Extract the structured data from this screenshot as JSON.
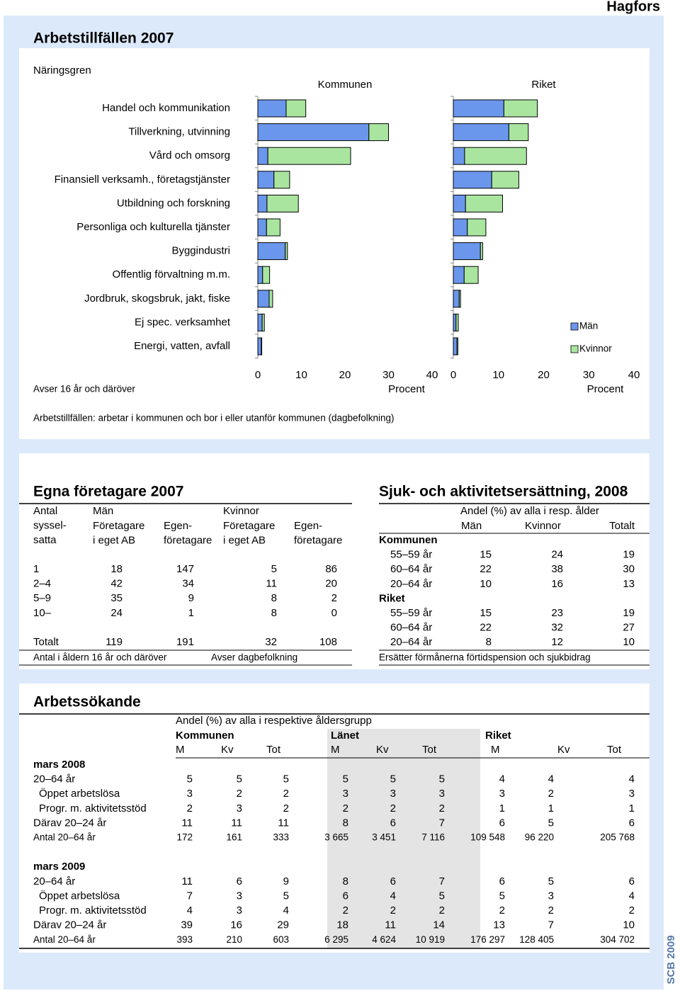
{
  "header": {
    "title": "Hagfors"
  },
  "side_label": "SCB 2009",
  "arbetstillfallen": {
    "title": "Arbetstillfällen 2007",
    "chart_data": [
      {
        "type": "bar",
        "orientation": "horizontal",
        "stacked": true,
        "title": "Kommunen",
        "category_label": "Näringsgren",
        "categories": [
          "Handel och kommunikation",
          "Tillverkning, utvinning",
          "Vård och omsorg",
          "Finansiell verksamh., företagstjänster",
          "Utbildning och forskning",
          "Personliga och kulturella tjänster",
          "Byggindustri",
          "Offentlig förvaltning m.m.",
          "Jordbruk, skogsbruk, jakt, fiske",
          "Ej spec. verksamhet",
          "Energi, vatten, avfall"
        ],
        "series": [
          {
            "name": "Män",
            "color": "#6a97ec",
            "values": [
              6.5,
              25.5,
              2.3,
              3.7,
              2.1,
              2.0,
              6.3,
              1.1,
              2.6,
              1.0,
              0.8
            ]
          },
          {
            "name": "Kvinnor",
            "color": "#a9e59f",
            "values": [
              4.5,
              4.5,
              19.0,
              3.6,
              7.2,
              3.1,
              0.5,
              1.6,
              0.8,
              0.5,
              0.1
            ]
          }
        ],
        "xlim": [
          0,
          40
        ],
        "xticks": [
          0,
          10,
          20,
          30,
          40
        ],
        "x_label": "Procent"
      },
      {
        "type": "bar",
        "orientation": "horizontal",
        "stacked": true,
        "title": "Riket",
        "series": [
          {
            "name": "Män",
            "color": "#6a97ec",
            "values": [
              11.2,
              12.3,
              2.5,
              8.5,
              2.7,
              3.1,
              6.0,
              2.4,
              1.3,
              0.6,
              0.8
            ]
          },
          {
            "name": "Kvinnor",
            "color": "#a9e59f",
            "values": [
              7.4,
              4.3,
              13.7,
              6.0,
              8.2,
              4.1,
              0.5,
              3.1,
              0.3,
              0.5,
              0.2
            ]
          }
        ],
        "xlim": [
          0,
          40
        ],
        "xticks": [
          0,
          10,
          20,
          30,
          40
        ],
        "x_label": "Procent"
      }
    ],
    "note": "Avser 16 år och däröver",
    "footnote": "Arbetstillfällen: arbetar i kommunen och bor i eller utanför kommunen (dagbefolkning)"
  },
  "egna": {
    "title": "Egna företagare 2007",
    "stub_header": [
      "Antal",
      "syssel-",
      "satta"
    ],
    "groups": [
      "Män",
      "Kvinnor"
    ],
    "subheaders": [
      [
        "Företagare",
        "i eget AB"
      ],
      [
        "Egen-",
        "företagare"
      ],
      [
        "Företagare",
        "i eget AB"
      ],
      [
        "Egen-",
        "företagare"
      ]
    ],
    "rows": [
      [
        "1",
        18,
        147,
        5,
        86
      ],
      [
        "2–4",
        42,
        34,
        11,
        20
      ],
      [
        "5–9",
        35,
        9,
        8,
        2
      ],
      [
        "10–",
        24,
        1,
        8,
        0
      ]
    ],
    "total": [
      "Totalt",
      119,
      191,
      32,
      108
    ],
    "notes": [
      "Antal i åldern 16 år och däröver",
      "Avser dagbefolkning"
    ]
  },
  "sjuk": {
    "title": "Sjuk- och aktivitetsersättning, 2008",
    "header": "Andel (%) av alla i resp. ålder",
    "columns": [
      "Män",
      "Kvinnor",
      "Totalt"
    ],
    "groups": [
      {
        "name": "Kommunen",
        "rows": [
          [
            "55–59 år",
            15,
            24,
            19
          ],
          [
            "60–64 år",
            22,
            38,
            30
          ],
          [
            "20–64 år",
            10,
            16,
            13
          ]
        ]
      },
      {
        "name": "Riket",
        "rows": [
          [
            "55–59 år",
            15,
            23,
            19
          ],
          [
            "60–64 år",
            22,
            32,
            27
          ],
          [
            "20–64 år",
            8,
            12,
            10
          ]
        ]
      }
    ],
    "note": "Ersätter förmånerna förtidspension och sjukbidrag"
  },
  "arbetssokande": {
    "title": "Arbetssökande",
    "header": "Andel (%) av alla i respektive åldersgrupp",
    "regions": [
      "Kommunen",
      "Länet",
      "Riket"
    ],
    "columns": [
      "M",
      "Kv",
      "Tot"
    ],
    "blocks": [
      {
        "name": "mars 2008",
        "rows": [
          [
            "20–64 år",
            5,
            5,
            5,
            5,
            5,
            5,
            4,
            4,
            4
          ],
          [
            "Öppet arbetslösa",
            3,
            2,
            2,
            3,
            3,
            3,
            3,
            2,
            3
          ],
          [
            "Progr. m. aktivitetsstöd",
            2,
            3,
            2,
            2,
            2,
            2,
            1,
            1,
            1
          ],
          [
            "Därav 20–24 år",
            11,
            11,
            11,
            8,
            6,
            7,
            6,
            5,
            6
          ]
        ],
        "count": [
          "Antal 20–64 år",
          "172",
          "161",
          "333",
          "3 665",
          "3 451",
          "7 116",
          "109 548",
          "96 220",
          "205 768"
        ]
      },
      {
        "name": "mars 2009",
        "rows": [
          [
            "20–64 år",
            11,
            6,
            9,
            8,
            6,
            7,
            6,
            5,
            6
          ],
          [
            "Öppet arbetslösa",
            7,
            3,
            5,
            6,
            4,
            5,
            5,
            3,
            4
          ],
          [
            "Progr. m. aktivitetsstöd",
            4,
            3,
            4,
            2,
            2,
            2,
            2,
            2,
            2
          ],
          [
            "Därav 20–24 år",
            39,
            16,
            29,
            18,
            11,
            14,
            13,
            7,
            10
          ]
        ],
        "count": [
          "Antal 20–64 år",
          "393",
          "210",
          "603",
          "6 295",
          "4 624",
          "10 919",
          "176 297",
          "128 405",
          "304 702"
        ]
      }
    ]
  }
}
